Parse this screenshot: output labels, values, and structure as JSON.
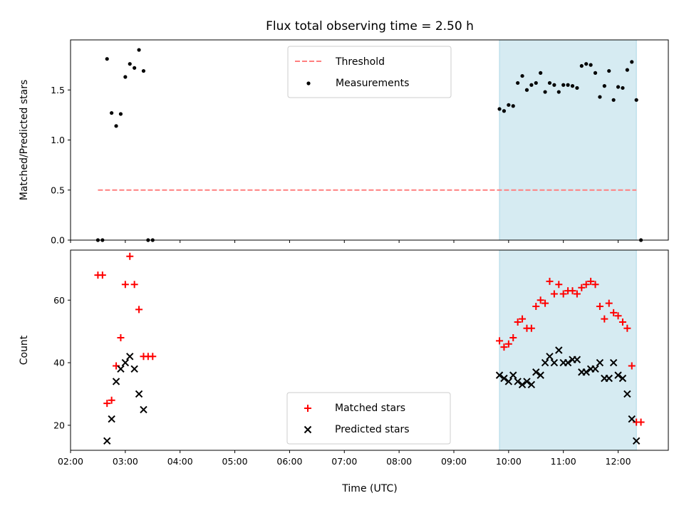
{
  "chart_data": {
    "type": "scatter",
    "title": "Flux total observing time = 2.50 h",
    "xlabel": "Time (UTC)",
    "x_tick_labels": [
      "02:00",
      "03:00",
      "04:00",
      "05:00",
      "06:00",
      "07:00",
      "08:00",
      "09:00",
      "10:00",
      "11:00",
      "12:00"
    ],
    "x_range": [
      "02:00",
      "12:55"
    ],
    "shaded_interval": [
      "09:50",
      "12:20"
    ],
    "shade_color": "#add8e6",
    "panels": [
      {
        "ylabel": "Matched/Predicted stars",
        "ylim": [
          0,
          2.0
        ],
        "yticks": [
          "0.0",
          "0.5",
          "1.0",
          "1.5"
        ],
        "threshold": {
          "name": "Threshold",
          "y": 0.5,
          "x_range": [
            "02:30",
            "12:20"
          ],
          "color": "#ff7f7f",
          "style": "dashed"
        },
        "series": [
          {
            "name": "Measurements",
            "marker": "dot",
            "color": "#000000",
            "points": [
              [
                "02:30",
                0.0
              ],
              [
                "02:35",
                0.0
              ],
              [
                "02:40",
                1.81
              ],
              [
                "02:45",
                1.27
              ],
              [
                "02:50",
                1.14
              ],
              [
                "02:55",
                1.26
              ],
              [
                "03:00",
                1.63
              ],
              [
                "03:05",
                1.76
              ],
              [
                "03:10",
                1.72
              ],
              [
                "03:15",
                1.9
              ],
              [
                "03:20",
                1.69
              ],
              [
                "03:25",
                0.0
              ],
              [
                "03:30",
                0.0
              ],
              [
                "09:50",
                1.31
              ],
              [
                "09:55",
                1.29
              ],
              [
                "10:00",
                1.35
              ],
              [
                "10:05",
                1.34
              ],
              [
                "10:10",
                1.57
              ],
              [
                "10:15",
                1.64
              ],
              [
                "10:20",
                1.5
              ],
              [
                "10:25",
                1.55
              ],
              [
                "10:30",
                1.57
              ],
              [
                "10:35",
                1.67
              ],
              [
                "10:40",
                1.48
              ],
              [
                "10:45",
                1.57
              ],
              [
                "10:50",
                1.55
              ],
              [
                "10:55",
                1.48
              ],
              [
                "11:00",
                1.55
              ],
              [
                "11:05",
                1.55
              ],
              [
                "11:10",
                1.54
              ],
              [
                "11:15",
                1.52
              ],
              [
                "11:20",
                1.74
              ],
              [
                "11:25",
                1.76
              ],
              [
                "11:30",
                1.75
              ],
              [
                "11:35",
                1.67
              ],
              [
                "11:40",
                1.43
              ],
              [
                "11:45",
                1.54
              ],
              [
                "11:50",
                1.69
              ],
              [
                "11:55",
                1.4
              ],
              [
                "12:00",
                1.53
              ],
              [
                "12:05",
                1.52
              ],
              [
                "12:10",
                1.7
              ],
              [
                "12:15",
                1.78
              ],
              [
                "12:20",
                1.4
              ],
              [
                "12:25",
                0.0
              ]
            ]
          }
        ],
        "legend_position": "upper center"
      },
      {
        "ylabel": "Count",
        "ylim": [
          12,
          76
        ],
        "yticks": [
          "20",
          "40",
          "60"
        ],
        "series": [
          {
            "name": "Matched stars",
            "marker": "plus",
            "color": "#ff0000",
            "points": [
              [
                "02:30",
                68
              ],
              [
                "02:35",
                68
              ],
              [
                "02:40",
                27
              ],
              [
                "02:45",
                28
              ],
              [
                "02:50",
                39
              ],
              [
                "02:55",
                48
              ],
              [
                "03:00",
                65
              ],
              [
                "03:05",
                74
              ],
              [
                "03:10",
                65
              ],
              [
                "03:15",
                57
              ],
              [
                "03:20",
                42
              ],
              [
                "03:25",
                42
              ],
              [
                "03:30",
                42
              ],
              [
                "09:50",
                47
              ],
              [
                "09:55",
                45
              ],
              [
                "10:00",
                46
              ],
              [
                "10:05",
                48
              ],
              [
                "10:10",
                53
              ],
              [
                "10:15",
                54
              ],
              [
                "10:20",
                51
              ],
              [
                "10:25",
                51
              ],
              [
                "10:30",
                58
              ],
              [
                "10:35",
                60
              ],
              [
                "10:40",
                59
              ],
              [
                "10:45",
                66
              ],
              [
                "10:50",
                62
              ],
              [
                "10:55",
                65
              ],
              [
                "11:00",
                62
              ],
              [
                "11:05",
                63
              ],
              [
                "11:10",
                63
              ],
              [
                "11:15",
                62
              ],
              [
                "11:20",
                64
              ],
              [
                "11:25",
                65
              ],
              [
                "11:30",
                66
              ],
              [
                "11:35",
                65
              ],
              [
                "11:40",
                58
              ],
              [
                "11:45",
                54
              ],
              [
                "11:50",
                59
              ],
              [
                "11:55",
                56
              ],
              [
                "12:00",
                55
              ],
              [
                "12:05",
                53
              ],
              [
                "12:10",
                51
              ],
              [
                "12:15",
                39
              ],
              [
                "12:20",
                21
              ],
              [
                "12:25",
                21
              ]
            ]
          },
          {
            "name": "Predicted stars",
            "marker": "x",
            "color": "#000000",
            "points": [
              [
                "02:40",
                15
              ],
              [
                "02:45",
                22
              ],
              [
                "02:50",
                34
              ],
              [
                "02:55",
                38
              ],
              [
                "03:00",
                40
              ],
              [
                "03:05",
                42
              ],
              [
                "03:10",
                38
              ],
              [
                "03:15",
                30
              ],
              [
                "03:20",
                25
              ],
              [
                "09:50",
                36
              ],
              [
                "09:55",
                35
              ],
              [
                "10:00",
                34
              ],
              [
                "10:05",
                36
              ],
              [
                "10:10",
                34
              ],
              [
                "10:15",
                33
              ],
              [
                "10:20",
                34
              ],
              [
                "10:25",
                33
              ],
              [
                "10:30",
                37
              ],
              [
                "10:35",
                36
              ],
              [
                "10:40",
                40
              ],
              [
                "10:45",
                42
              ],
              [
                "10:50",
                40
              ],
              [
                "10:55",
                44
              ],
              [
                "11:00",
                40
              ],
              [
                "11:05",
                40
              ],
              [
                "11:10",
                41
              ],
              [
                "11:15",
                41
              ],
              [
                "11:20",
                37
              ],
              [
                "11:25",
                37
              ],
              [
                "11:30",
                38
              ],
              [
                "11:35",
                38
              ],
              [
                "11:40",
                40
              ],
              [
                "11:45",
                35
              ],
              [
                "11:50",
                35
              ],
              [
                "11:55",
                40
              ],
              [
                "12:00",
                36
              ],
              [
                "12:05",
                35
              ],
              [
                "12:10",
                30
              ],
              [
                "12:15",
                22
              ],
              [
                "12:20",
                15
              ]
            ]
          }
        ],
        "legend_position": "lower center"
      }
    ]
  }
}
